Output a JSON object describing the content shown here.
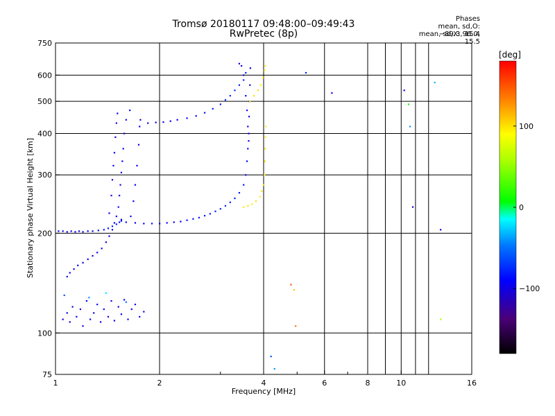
{
  "header": {
    "title": "Tromsø 20180117 09:48:00–09:49:43",
    "subtitle": "RwPretec (8p)",
    "stats_title": "Phases",
    "stats_o": "mean, sd,O: −89.3, 15.4",
    "stats_x": "mean, sd,X:  96.0, 15.5"
  },
  "colorbar": {
    "unit_label": "[deg]",
    "range": [
      -180,
      180
    ],
    "tick_labels": [
      {
        "v": 100,
        "t": "100"
      },
      {
        "v": 0,
        "t": "0"
      },
      {
        "v": -100,
        "t": "−100"
      }
    ]
  },
  "chart_data": {
    "type": "scatter",
    "xlabel": "Frequency [MHz]",
    "ylabel": "Stationary phase Virtual Height [km]",
    "x_scale": "log",
    "y_scale": "log",
    "xlim": [
      1,
      16
    ],
    "ylim": [
      75,
      750
    ],
    "grid": true,
    "x_ticks": [
      {
        "v": 1,
        "t": "1"
      },
      {
        "v": 2,
        "t": "2"
      },
      {
        "v": 4,
        "t": "4"
      },
      {
        "v": 6,
        "t": "6"
      },
      {
        "v": 8,
        "t": "8"
      },
      {
        "v": 10,
        "t": "10"
      },
      {
        "v": 16,
        "t": "16"
      }
    ],
    "x_minor_ticks": [
      3,
      5,
      7,
      9
    ],
    "y_ticks": [
      {
        "v": 75,
        "t": "75"
      },
      {
        "v": 100,
        "t": "100"
      },
      {
        "v": 200,
        "t": "200"
      },
      {
        "v": 300,
        "t": "300"
      },
      {
        "v": 400,
        "t": "400"
      },
      {
        "v": 500,
        "t": "500"
      },
      {
        "v": 600,
        "t": "600"
      },
      {
        "v": 750,
        "t": "750"
      }
    ],
    "y_grid": [
      100,
      200,
      300,
      400,
      500,
      600
    ],
    "x_grid": [
      2,
      4,
      6,
      8,
      9,
      10,
      11,
      12,
      16
    ],
    "series": [
      {
        "points": [
          [
            1.02,
            203,
            -95
          ],
          [
            1.05,
            203,
            -100
          ],
          [
            1.08,
            202,
            -98
          ],
          [
            1.11,
            203,
            -102
          ],
          [
            1.14,
            202,
            -96
          ],
          [
            1.17,
            203,
            -100
          ],
          [
            1.2,
            202,
            -95
          ],
          [
            1.24,
            203,
            -92
          ],
          [
            1.28,
            203,
            -90
          ],
          [
            1.33,
            204,
            -88
          ],
          [
            1.38,
            205,
            -85
          ],
          [
            1.42,
            207,
            -83
          ],
          [
            1.46,
            210,
            -80
          ],
          [
            1.5,
            213,
            -80
          ],
          [
            1.53,
            216,
            -85
          ],
          [
            1.55,
            220,
            -90
          ],
          [
            1.08,
            148,
            -100
          ],
          [
            1.1,
            152,
            -98
          ],
          [
            1.13,
            156,
            -100
          ],
          [
            1.16,
            160,
            -95
          ],
          [
            1.2,
            163,
            -98
          ],
          [
            1.24,
            167,
            -100
          ],
          [
            1.28,
            171,
            -95
          ],
          [
            1.32,
            175,
            -92
          ],
          [
            1.36,
            180,
            -96
          ],
          [
            1.4,
            188,
            -98
          ],
          [
            1.43,
            196,
            -100
          ],
          [
            1.46,
            205,
            -95
          ],
          [
            1.48,
            215,
            -90
          ],
          [
            1.5,
            225,
            -92
          ],
          [
            1.52,
            240,
            -95
          ],
          [
            1.53,
            260,
            -98
          ],
          [
            1.54,
            280,
            -100
          ],
          [
            1.55,
            305,
            -95
          ],
          [
            1.56,
            330,
            -92
          ],
          [
            1.57,
            360,
            -96
          ],
          [
            1.58,
            400,
            -98
          ],
          [
            1.6,
            440,
            -100
          ],
          [
            1.64,
            470,
            -95
          ],
          [
            1.43,
            230,
            -96
          ],
          [
            1.45,
            260,
            -98
          ],
          [
            1.46,
            290,
            -100
          ],
          [
            1.47,
            320,
            -96
          ],
          [
            1.48,
            350,
            -95
          ],
          [
            1.49,
            390,
            -98
          ],
          [
            1.5,
            430,
            -100
          ],
          [
            1.51,
            460,
            -96
          ],
          [
            1.65,
            225,
            -95
          ],
          [
            1.68,
            250,
            -90
          ],
          [
            1.7,
            280,
            -92
          ],
          [
            1.72,
            320,
            -95
          ],
          [
            1.74,
            370,
            -98
          ],
          [
            1.75,
            420,
            -96
          ],
          [
            1.76,
            440,
            -100
          ],
          [
            1.55,
            218,
            -100
          ],
          [
            1.6,
            216,
            -95
          ],
          [
            1.7,
            215,
            -92
          ],
          [
            1.8,
            214,
            -95
          ],
          [
            1.9,
            214,
            -98
          ],
          [
            2.0,
            214,
            -96
          ],
          [
            2.1,
            215,
            -95
          ],
          [
            2.2,
            216,
            -92
          ],
          [
            2.3,
            217,
            -90
          ],
          [
            2.4,
            219,
            -88
          ],
          [
            2.5,
            221,
            -86
          ],
          [
            2.6,
            223,
            -84
          ],
          [
            2.7,
            226,
            -82
          ],
          [
            2.8,
            229,
            -80
          ],
          [
            2.9,
            233,
            -78
          ],
          [
            3.0,
            237,
            -76
          ],
          [
            3.1,
            242,
            -75
          ],
          [
            3.2,
            248,
            -78
          ],
          [
            3.3,
            255,
            -80
          ],
          [
            3.4,
            265,
            -83
          ],
          [
            3.5,
            280,
            -85
          ],
          [
            3.55,
            300,
            -88
          ],
          [
            3.58,
            330,
            -90
          ],
          [
            3.6,
            360,
            -92
          ],
          [
            3.62,
            400,
            -94
          ],
          [
            3.63,
            450,
            -96
          ],
          [
            3.64,
            500,
            -98
          ],
          [
            3.65,
            560,
            -100
          ],
          [
            3.66,
            630,
            -102
          ],
          [
            1.85,
            430,
            -95
          ],
          [
            1.95,
            432,
            -98
          ],
          [
            2.05,
            433,
            -96
          ],
          [
            2.15,
            436,
            -94
          ],
          [
            2.25,
            440,
            -92
          ],
          [
            2.4,
            445,
            -90
          ],
          [
            2.55,
            452,
            -88
          ],
          [
            2.7,
            462,
            -85
          ],
          [
            2.85,
            475,
            -82
          ],
          [
            3.0,
            490,
            -80
          ],
          [
            3.1,
            505,
            -78
          ],
          [
            3.2,
            520,
            -76
          ],
          [
            3.3,
            540,
            -75
          ],
          [
            3.4,
            560,
            -78
          ],
          [
            3.5,
            580,
            -80
          ],
          [
            3.55,
            610,
            -82
          ],
          [
            3.4,
            650,
            -100
          ],
          [
            3.45,
            640,
            -98
          ],
          [
            3.5,
            600,
            -96
          ],
          [
            3.55,
            520,
            -95
          ],
          [
            3.58,
            470,
            -98
          ],
          [
            3.6,
            420,
            -100
          ],
          [
            3.62,
            380,
            -96
          ],
          [
            3.5,
            240,
            98
          ],
          [
            3.6,
            242,
            100
          ],
          [
            3.7,
            245,
            95
          ],
          [
            3.8,
            250,
            102
          ],
          [
            3.9,
            258,
            96
          ],
          [
            3.95,
            268,
            100
          ],
          [
            4.0,
            280,
            98
          ],
          [
            4.02,
            300,
            95
          ],
          [
            4.03,
            330,
            100
          ],
          [
            4.04,
            360,
            102
          ],
          [
            4.05,
            390,
            96
          ],
          [
            4.06,
            420,
            98
          ],
          [
            3.65,
            500,
            98
          ],
          [
            3.75,
            520,
            100
          ],
          [
            3.85,
            540,
            102
          ],
          [
            3.92,
            560,
            96
          ],
          [
            3.98,
            590,
            98
          ],
          [
            4.02,
            620,
            100
          ],
          [
            4.05,
            640,
            95
          ],
          [
            1.05,
            110,
            -98
          ],
          [
            1.08,
            115,
            -95
          ],
          [
            1.1,
            108,
            -100
          ],
          [
            1.12,
            120,
            -96
          ],
          [
            1.15,
            112,
            -92
          ],
          [
            1.18,
            118,
            -98
          ],
          [
            1.2,
            105,
            -100
          ],
          [
            1.23,
            125,
            -95
          ],
          [
            1.26,
            110,
            -96
          ],
          [
            1.29,
            115,
            -98
          ],
          [
            1.32,
            122,
            -94
          ],
          [
            1.35,
            108,
            -100
          ],
          [
            1.38,
            118,
            -92
          ],
          [
            1.42,
            112,
            -96
          ],
          [
            1.45,
            125,
            -98
          ],
          [
            1.48,
            109,
            -95
          ],
          [
            1.52,
            120,
            -100
          ],
          [
            1.55,
            114,
            -92
          ],
          [
            1.58,
            126,
            -96
          ],
          [
            1.62,
            110,
            -98
          ],
          [
            1.66,
            118,
            -94
          ],
          [
            1.7,
            122,
            -100
          ],
          [
            1.75,
            112,
            -96
          ],
          [
            1.8,
            116,
            -92
          ],
          [
            1.06,
            130,
            -60
          ],
          [
            1.25,
            128,
            -40
          ],
          [
            1.4,
            132,
            -20
          ],
          [
            1.6,
            124,
            -50
          ],
          [
            5.3,
            610,
            -80
          ],
          [
            6.3,
            530,
            -95
          ],
          [
            10.2,
            540,
            -100
          ],
          [
            10.5,
            490,
            10
          ],
          [
            12.5,
            570,
            -30
          ],
          [
            10.6,
            420,
            -40
          ],
          [
            10.8,
            240,
            -110
          ],
          [
            13.0,
            205,
            -100
          ],
          [
            13.0,
            110,
            60
          ],
          [
            4.8,
            140,
            150
          ],
          [
            4.9,
            135,
            110
          ],
          [
            4.95,
            105,
            140
          ],
          [
            4.2,
            85,
            -60
          ],
          [
            4.3,
            78,
            -40
          ]
        ]
      }
    ]
  }
}
